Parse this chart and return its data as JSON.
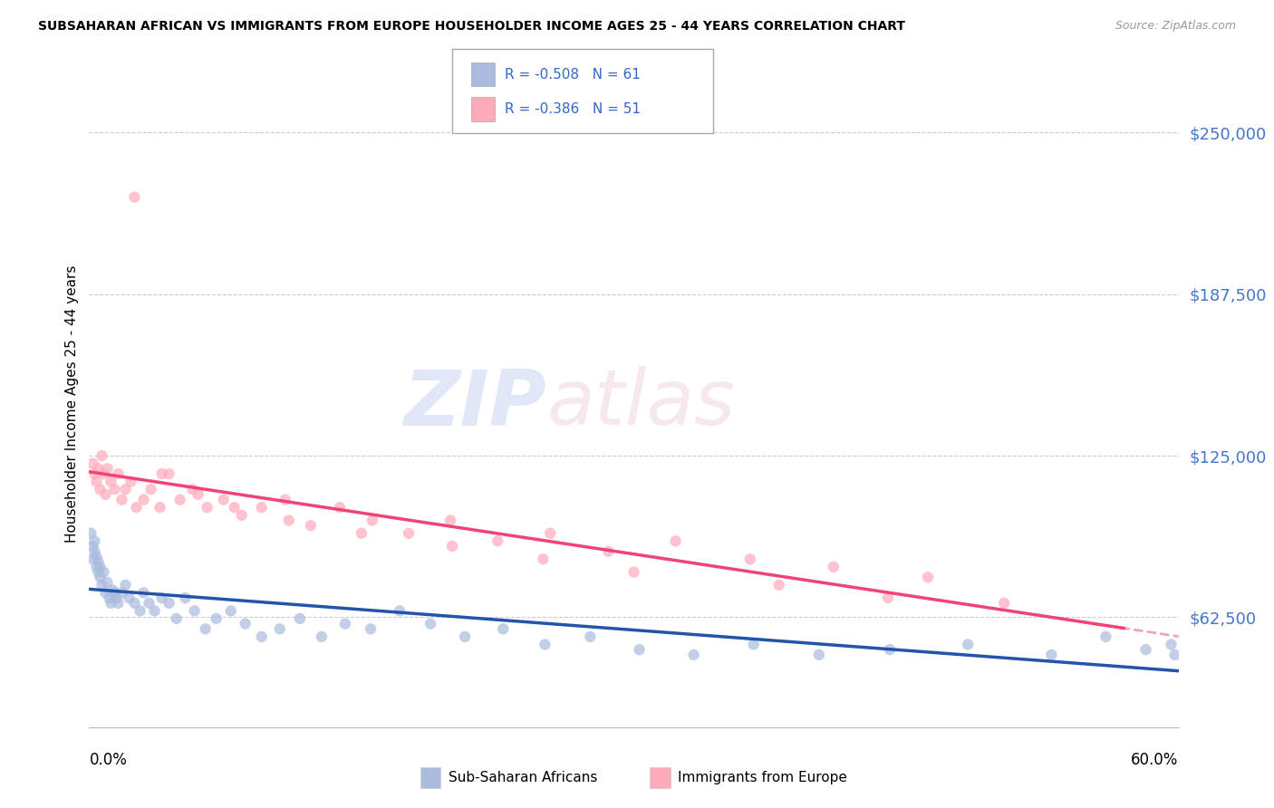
{
  "title": "SUBSAHARAN AFRICAN VS IMMIGRANTS FROM EUROPE HOUSEHOLDER INCOME AGES 25 - 44 YEARS CORRELATION CHART",
  "source": "Source: ZipAtlas.com",
  "ylabel": "Householder Income Ages 25 - 44 years",
  "yticks": [
    62500,
    125000,
    187500,
    250000
  ],
  "ytick_labels": [
    "$62,500",
    "$125,000",
    "$187,500",
    "$250,000"
  ],
  "xmin": 0.0,
  "xmax": 0.6,
  "ymin": 20000,
  "ymax": 270000,
  "legend1_R": "-0.508",
  "legend1_N": "61",
  "legend2_R": "-0.386",
  "legend2_N": "51",
  "color_blue": "#AABBDD",
  "color_pink": "#FFAABB",
  "color_blue_line": "#2255AA",
  "color_pink_line": "#EE4477",
  "blue_scatter_x": [
    0.001,
    0.002,
    0.002,
    0.003,
    0.003,
    0.004,
    0.004,
    0.005,
    0.005,
    0.006,
    0.006,
    0.007,
    0.008,
    0.009,
    0.01,
    0.011,
    0.012,
    0.013,
    0.014,
    0.015,
    0.016,
    0.018,
    0.02,
    0.022,
    0.025,
    0.028,
    0.03,
    0.033,
    0.036,
    0.04,
    0.044,
    0.048,
    0.053,
    0.058,
    0.064,
    0.07,
    0.078,
    0.086,
    0.095,
    0.105,
    0.116,
    0.128,
    0.141,
    0.155,
    0.171,
    0.188,
    0.207,
    0.228,
    0.251,
    0.276,
    0.303,
    0.333,
    0.366,
    0.402,
    0.441,
    0.484,
    0.53,
    0.56,
    0.582,
    0.596,
    0.598
  ],
  "blue_scatter_y": [
    95000,
    90000,
    85000,
    92000,
    88000,
    82000,
    86000,
    80000,
    84000,
    78000,
    82000,
    75000,
    80000,
    72000,
    76000,
    70000,
    68000,
    73000,
    72000,
    70000,
    68000,
    72000,
    75000,
    70000,
    68000,
    65000,
    72000,
    68000,
    65000,
    70000,
    68000,
    62000,
    70000,
    65000,
    58000,
    62000,
    65000,
    60000,
    55000,
    58000,
    62000,
    55000,
    60000,
    58000,
    65000,
    60000,
    55000,
    58000,
    52000,
    55000,
    50000,
    48000,
    52000,
    48000,
    50000,
    52000,
    48000,
    55000,
    50000,
    52000,
    48000
  ],
  "pink_scatter_x": [
    0.002,
    0.003,
    0.004,
    0.005,
    0.006,
    0.007,
    0.008,
    0.009,
    0.01,
    0.012,
    0.014,
    0.016,
    0.018,
    0.02,
    0.023,
    0.026,
    0.03,
    0.034,
    0.039,
    0.044,
    0.05,
    0.057,
    0.065,
    0.074,
    0.084,
    0.095,
    0.108,
    0.122,
    0.138,
    0.156,
    0.176,
    0.199,
    0.225,
    0.254,
    0.286,
    0.323,
    0.364,
    0.41,
    0.462,
    0.504,
    0.025,
    0.04,
    0.06,
    0.08,
    0.11,
    0.15,
    0.2,
    0.25,
    0.3,
    0.38,
    0.44
  ],
  "pink_scatter_y": [
    122000,
    118000,
    115000,
    120000,
    112000,
    125000,
    118000,
    110000,
    120000,
    115000,
    112000,
    118000,
    108000,
    112000,
    115000,
    105000,
    108000,
    112000,
    105000,
    118000,
    108000,
    112000,
    105000,
    108000,
    102000,
    105000,
    108000,
    98000,
    105000,
    100000,
    95000,
    100000,
    92000,
    95000,
    88000,
    92000,
    85000,
    82000,
    78000,
    68000,
    225000,
    118000,
    110000,
    105000,
    100000,
    95000,
    90000,
    85000,
    80000,
    75000,
    70000
  ]
}
